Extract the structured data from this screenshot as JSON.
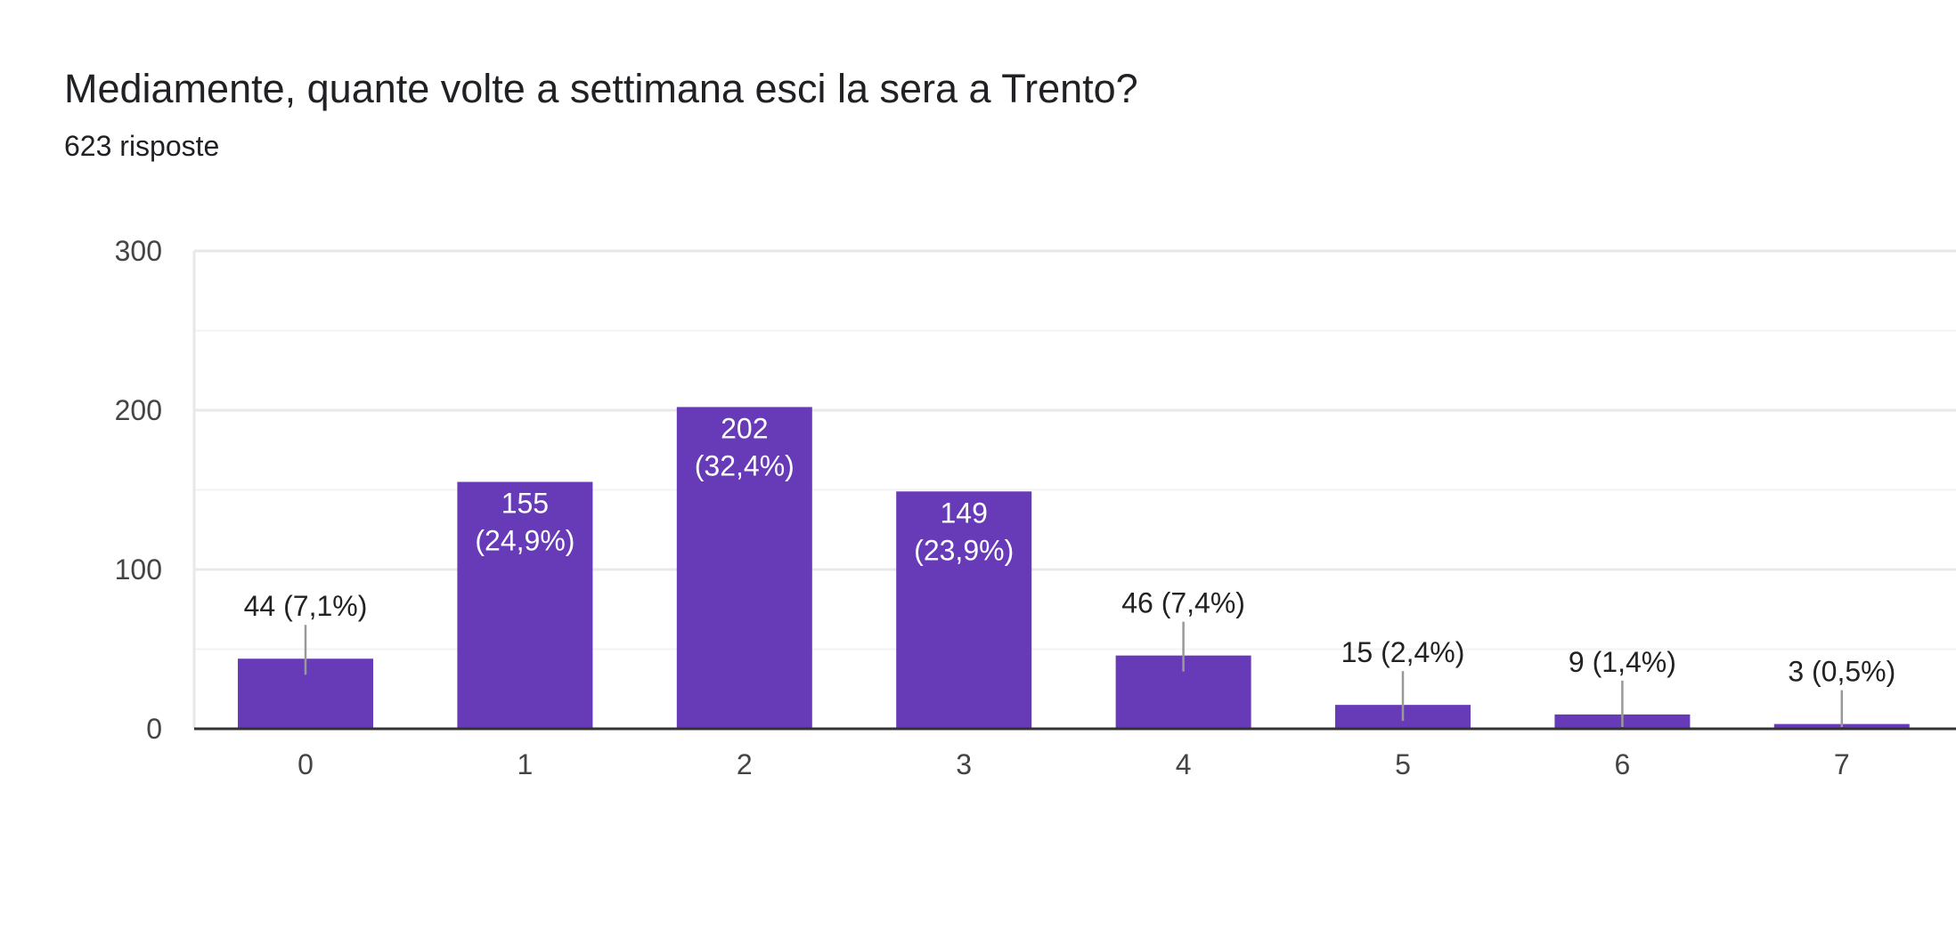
{
  "header": {
    "title": "Mediamente, quante volte a settimana esci la sera a Trento?",
    "subtitle": "623 risposte"
  },
  "colors": {
    "bar": "#673ab7",
    "grid_major": "#e8e8e8",
    "grid_minor": "#f3f3f3",
    "axis": "#333333",
    "leader": "#999999"
  },
  "chart_data": {
    "type": "bar",
    "categories": [
      "0",
      "1",
      "2",
      "3",
      "4",
      "5",
      "6",
      "7"
    ],
    "values": [
      44,
      155,
      202,
      149,
      46,
      15,
      9,
      3
    ],
    "data_labels": [
      "44 (7,1%)",
      "155 (24,9%)",
      "202 (32,4%)",
      "149 (23,9%)",
      "46 (7,4%)",
      "15 (2,4%)",
      "9 (1,4%)",
      "3 (0,5%)"
    ],
    "yticks": [
      0,
      100,
      200,
      300
    ],
    "ylim": [
      0,
      300
    ],
    "grid": true,
    "legend": "none"
  }
}
